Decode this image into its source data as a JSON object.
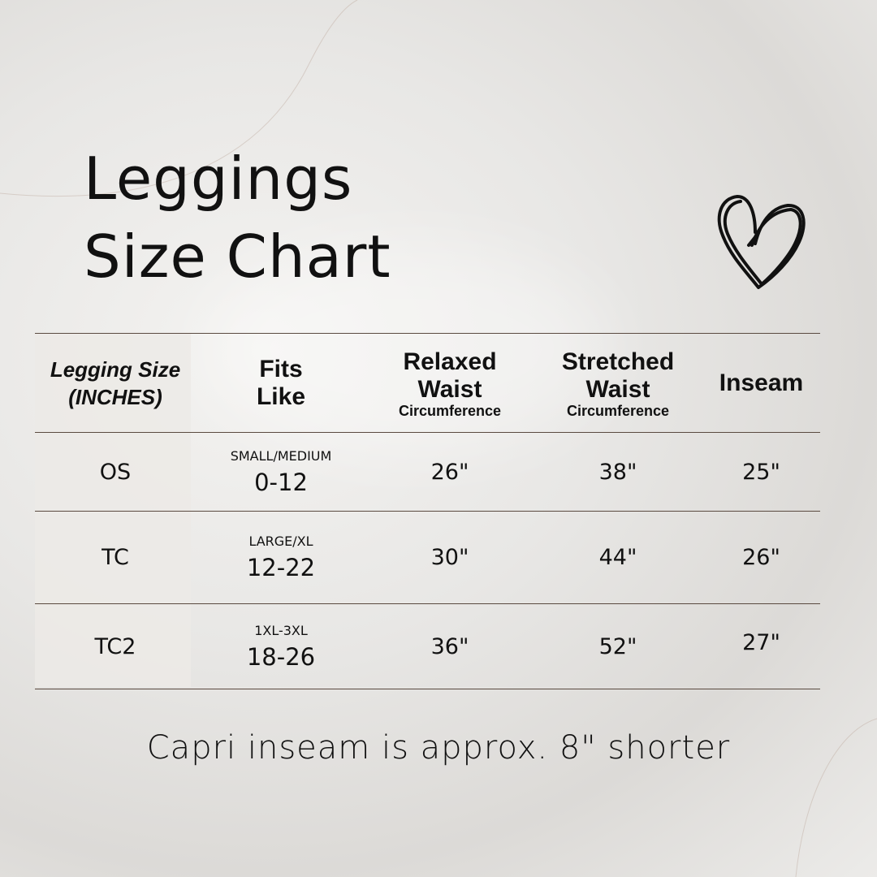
{
  "title_line1": "Leggings",
  "title_line2": "Size Chart",
  "heart_icon": "heart-outline-icon",
  "table": {
    "headers": [
      {
        "line1": "Legging Size",
        "line2": "(INCHES)"
      },
      {
        "line1": "Fits",
        "line2": "Like"
      },
      {
        "line1": "Relaxed",
        "line2": "Waist",
        "sub": "Circumference"
      },
      {
        "line1": "Stretched",
        "line2": "Waist",
        "sub": "Circumference"
      },
      {
        "line1": "Inseam"
      }
    ],
    "rows": [
      {
        "size": "OS",
        "fits_label": "SMALL/MEDIUM",
        "fits_range": "0-12",
        "relaxed": "26\"",
        "stretched": "38\"",
        "inseam": "25\""
      },
      {
        "size": "TC",
        "fits_label": "LARGE/XL",
        "fits_range": "12-22",
        "relaxed": "30\"",
        "stretched": "44\"",
        "inseam": "26\""
      },
      {
        "size": "TC2",
        "fits_label": "1XL-3XL",
        "fits_range": "18-26",
        "relaxed": "36\"",
        "stretched": "52\"",
        "inseam": "27\""
      }
    ]
  },
  "note": "Capri inseam is approx. 8\" shorter",
  "colors": {
    "rule": "#5a4a40",
    "text": "#111111"
  }
}
